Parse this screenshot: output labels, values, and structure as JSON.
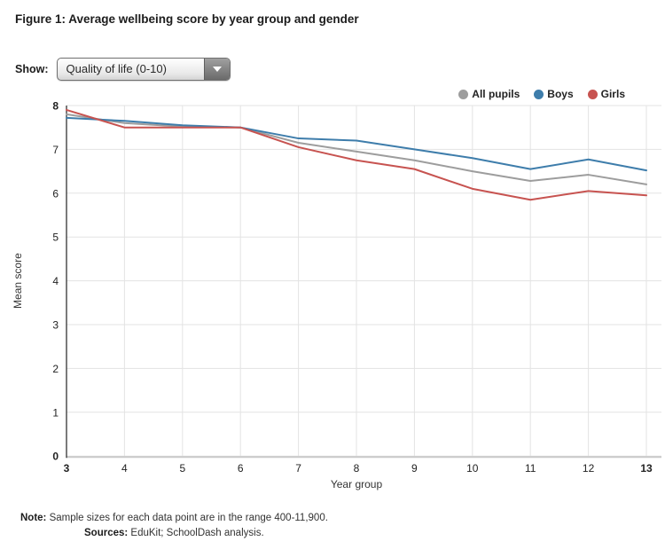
{
  "title": "Figure 1: Average wellbeing score by year group and gender",
  "show": {
    "label": "Show:",
    "selected": "Quality of life (0-10)"
  },
  "legend": [
    {
      "name": "All pupils",
      "color": "#9d9d9d"
    },
    {
      "name": "Boys",
      "color": "#3e7dab"
    },
    {
      "name": "Girls",
      "color": "#c75350"
    }
  ],
  "notes": {
    "note_label": "Note:",
    "note_text": " Sample sizes for each data point are in the range 400-11,900.",
    "sources_label": "Sources:",
    "sources_text": " EduKit; SchoolDash analysis."
  },
  "chart_data": {
    "type": "line",
    "x": [
      3,
      4,
      5,
      6,
      7,
      8,
      9,
      10,
      11,
      12,
      13
    ],
    "xlabel": "Year group",
    "ylabel": "Mean score",
    "xlim": [
      3,
      13
    ],
    "ylim": [
      0,
      8
    ],
    "yticks": [
      0,
      1,
      2,
      3,
      4,
      5,
      6,
      7,
      8
    ],
    "grid": true,
    "legend_position": "top-right",
    "series": [
      {
        "name": "All pupils",
        "color": "#9d9d9d",
        "values": [
          7.8,
          7.6,
          7.52,
          7.5,
          7.15,
          6.95,
          6.75,
          6.5,
          6.28,
          6.42,
          6.2
        ]
      },
      {
        "name": "Boys",
        "color": "#3e7dab",
        "values": [
          7.72,
          7.65,
          7.55,
          7.5,
          7.25,
          7.2,
          7.0,
          6.8,
          6.55,
          6.77,
          6.52
        ]
      },
      {
        "name": "Girls",
        "color": "#c75350",
        "values": [
          7.9,
          7.5,
          7.5,
          7.5,
          7.05,
          6.75,
          6.55,
          6.1,
          5.85,
          6.05,
          5.95
        ]
      }
    ],
    "colors": {
      "grid": "#e3e3e3",
      "y_axis_line": "#333333",
      "x_axis_line": "#c9c9c9",
      "tick_text": "#222222"
    }
  }
}
